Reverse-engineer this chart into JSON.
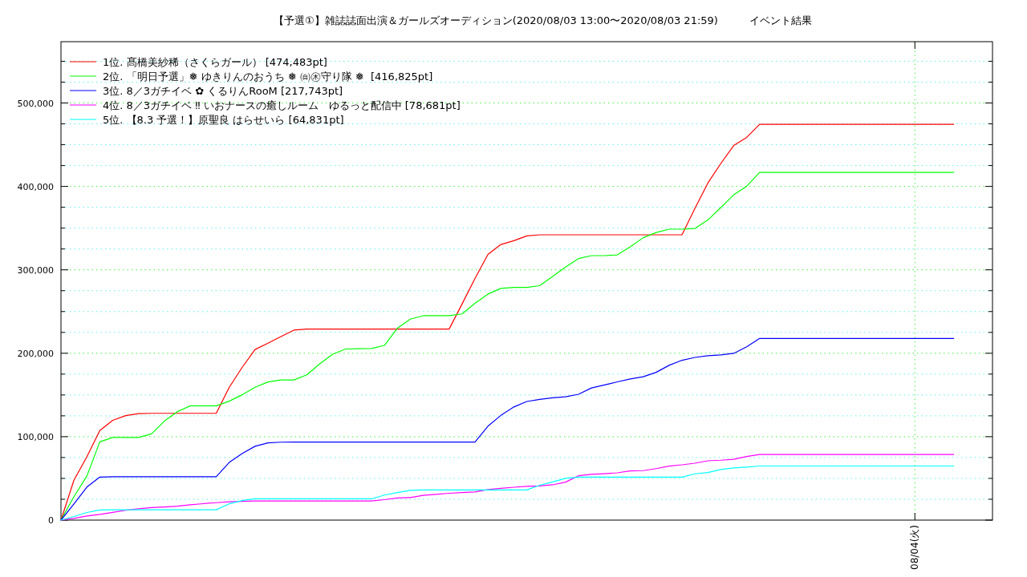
{
  "chart_data": {
    "type": "line",
    "title": "【予選①】雑誌誌面出演＆ガールズオーディション(2020/08/03 13:00〜2020/08/03 21:59)　　　イベント結果",
    "categories": [
      null,
      null,
      null,
      null,
      null,
      null,
      null,
      null,
      null,
      null,
      null,
      null,
      null,
      null,
      null,
      null,
      null,
      null,
      null,
      null,
      null,
      null,
      null,
      null,
      null,
      null,
      null,
      null,
      null,
      null,
      null,
      null,
      null,
      null,
      null,
      null,
      null,
      null,
      null,
      null,
      null,
      null,
      null,
      null,
      null,
      null,
      null,
      null,
      null,
      null,
      null,
      null,
      null,
      null,
      null,
      null,
      null,
      null,
      null,
      null,
      null,
      null,
      null,
      null,
      null,
      null,
      "08/04(火)",
      null,
      null,
      null,
      null,
      null,
      null
    ],
    "ylim": [
      0,
      573500
    ],
    "yticks": [
      {
        "value": 0,
        "label": "0"
      },
      {
        "value": 25000,
        "label": null
      },
      {
        "value": 50000,
        "label": null
      },
      {
        "value": 75000,
        "label": null
      },
      {
        "value": 100000,
        "label": "100,000"
      },
      {
        "value": 125000,
        "label": null
      },
      {
        "value": 150000,
        "label": null
      },
      {
        "value": 175000,
        "label": null
      },
      {
        "value": 200000,
        "label": "200,000"
      },
      {
        "value": 225000,
        "label": null
      },
      {
        "value": 250000,
        "label": null
      },
      {
        "value": 275000,
        "label": null
      },
      {
        "value": 300000,
        "label": "300,000"
      },
      {
        "value": 325000,
        "label": null
      },
      {
        "value": 350000,
        "label": null
      },
      {
        "value": 375000,
        "label": null
      },
      {
        "value": 400000,
        "label": "400,000"
      },
      {
        "value": 425000,
        "label": null
      },
      {
        "value": 450000,
        "label": null
      },
      {
        "value": 475000,
        "label": null
      },
      {
        "value": 500000,
        "label": "500,000"
      },
      {
        "value": 525000,
        "label": null
      },
      {
        "value": 550000,
        "label": null
      }
    ],
    "grid": true,
    "legend": "top left",
    "marker": "none",
    "line_style": "solid",
    "series": [
      {
        "name": "1位. 髙橋美紗稀（さくらガール） [474,483pt]",
        "color": "#ff0000",
        "values": [
          0,
          47800,
          75900,
          107300,
          119600,
          125200,
          127600,
          128000,
          128000,
          128000,
          128000,
          128000,
          128000,
          159000,
          183000,
          204500,
          212000,
          220000,
          227700,
          229000,
          229000,
          229000,
          229000,
          229000,
          229000,
          229000,
          229000,
          229000,
          229000,
          229000,
          229000,
          259000,
          289600,
          318500,
          330400,
          334900,
          340700,
          342000,
          342000,
          342000,
          342000,
          342000,
          342000,
          342000,
          342000,
          342000,
          342000,
          342000,
          342000,
          373700,
          404000,
          427500,
          449000,
          458800,
          474483,
          474483,
          474483,
          474483,
          474483,
          474483,
          474483,
          474483,
          474483,
          474483,
          474483,
          474483,
          474483,
          474483,
          474483,
          474483,
          null,
          null,
          null
        ]
      },
      {
        "name": "2位. 「明日予選」❅ ゆきりんのおうち ❅ ㉂㊍守り隊 ❅  [416,825pt]",
        "color": "#00ff00",
        "values": [
          0,
          28100,
          52700,
          93800,
          99000,
          99000,
          99000,
          103400,
          118800,
          130000,
          137000,
          137000,
          137000,
          142500,
          150200,
          159200,
          165600,
          168000,
          168000,
          174100,
          187300,
          198900,
          205100,
          205400,
          205700,
          209400,
          230000,
          240900,
          245000,
          245000,
          245000,
          247100,
          259900,
          271000,
          277700,
          279000,
          279000,
          281000,
          292100,
          303300,
          313500,
          317000,
          317000,
          317900,
          327600,
          338500,
          344700,
          348700,
          348700,
          349600,
          359700,
          374600,
          389900,
          400200,
          416825,
          416825,
          416825,
          416825,
          416825,
          416825,
          416825,
          416825,
          416825,
          416825,
          416825,
          416825,
          416825,
          416825,
          416825,
          416825,
          null,
          null,
          null
        ]
      },
      {
        "name": "3位. 8／3ガチイベ ✿ くるりんRooM [217,743pt]",
        "color": "#0000ff",
        "values": [
          0,
          19300,
          39600,
          51600,
          52000,
          52000,
          52000,
          52000,
          52000,
          52000,
          52000,
          52000,
          52000,
          69100,
          79700,
          88500,
          92600,
          93400,
          93500,
          93500,
          93500,
          93500,
          93500,
          93500,
          93500,
          93500,
          93500,
          93500,
          93500,
          93500,
          93500,
          93500,
          93500,
          112600,
          125500,
          135600,
          142200,
          144700,
          146700,
          147800,
          150800,
          158400,
          162000,
          165700,
          169200,
          171900,
          177100,
          185500,
          191600,
          195000,
          197100,
          198100,
          199900,
          207800,
          217743,
          217743,
          217743,
          217743,
          217743,
          217743,
          217743,
          217743,
          217743,
          217743,
          217743,
          217743,
          217743,
          217743,
          217743,
          217743,
          null,
          null,
          null
        ]
      },
      {
        "name": "4位. 8／3ガチイベ ‼ いおナースの癒しルーム　ゆるっと配信中 [78,681pt]",
        "color": "#ff00ff",
        "values": [
          0,
          2100,
          5000,
          6800,
          9300,
          11800,
          13600,
          15000,
          15800,
          16700,
          18400,
          19700,
          20900,
          22000,
          22500,
          22900,
          23000,
          23000,
          23000,
          23000,
          23000,
          23000,
          23000,
          23000,
          23000,
          24500,
          26500,
          27100,
          29600,
          30900,
          32200,
          33000,
          33800,
          36600,
          38000,
          39400,
          40400,
          41000,
          42300,
          45500,
          53100,
          54800,
          55600,
          56700,
          59000,
          59300,
          61700,
          64800,
          66300,
          68200,
          71100,
          71800,
          72900,
          76300,
          78681,
          78681,
          78681,
          78681,
          78681,
          78681,
          78681,
          78681,
          78681,
          78681,
          78681,
          78681,
          78681,
          78681,
          78681,
          78681,
          null,
          null,
          null
        ]
      },
      {
        "name": "5位. 【8.3 予選！】原聖良 はらせいら [64,831pt]",
        "color": "#00ffff",
        "values": [
          0,
          4300,
          9100,
          12100,
          12300,
          12400,
          12400,
          12400,
          12400,
          12400,
          12400,
          12400,
          12400,
          19500,
          23400,
          25500,
          25500,
          25500,
          25500,
          25500,
          25500,
          25500,
          25500,
          25500,
          25500,
          30000,
          33000,
          35700,
          36100,
          36100,
          36100,
          36100,
          36100,
          36100,
          36100,
          36100,
          36100,
          41800,
          45700,
          50100,
          51500,
          51500,
          51500,
          51500,
          51500,
          51500,
          51500,
          51500,
          51500,
          55500,
          57100,
          60600,
          62600,
          63600,
          64831,
          64831,
          64831,
          64831,
          64831,
          64831,
          64831,
          64831,
          64831,
          64831,
          64831,
          64831,
          64831,
          64831,
          64831,
          64831,
          null,
          null,
          null
        ]
      }
    ]
  }
}
